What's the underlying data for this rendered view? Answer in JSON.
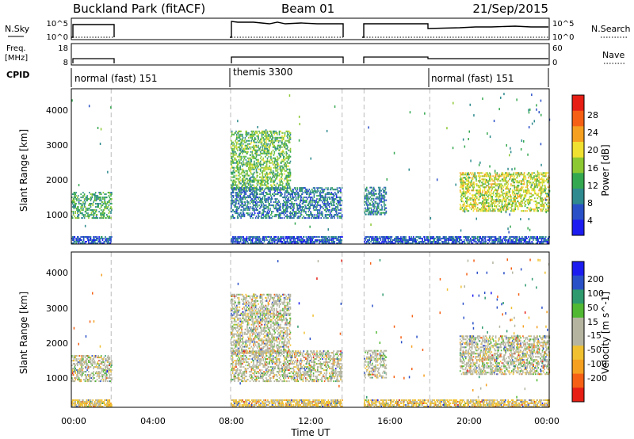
{
  "header": {
    "site": "Buckland Park (fitACF)",
    "beam": "Beam 01",
    "date": "21/Sep/2015"
  },
  "top_panels": {
    "nsky_label": "N.Sky",
    "nsky_ticks": [
      "10^5",
      "10^0"
    ],
    "nsearch_label": "N.Search",
    "nsearch_ticks": [
      "10^5",
      "10^0"
    ],
    "freq_label_1": "Freq.",
    "freq_label_2": "[MHz]",
    "freq_ticks": [
      "18",
      "8"
    ],
    "nave_label": "Nave",
    "nave_ticks": [
      "60",
      "0"
    ],
    "cpid_label": "CPID",
    "cpid_modes": [
      {
        "name": "normal (fast) 151",
        "start": "00:00",
        "end": "08:00"
      },
      {
        "name": "themis 3300",
        "start": "08:00",
        "end": "18:00"
      },
      {
        "name": "normal (fast) 151",
        "start": "18:00",
        "end": "24:00"
      }
    ]
  },
  "x_axis": {
    "label": "Time UT",
    "ticks": [
      "00:00",
      "04:00",
      "08:00",
      "12:00",
      "16:00",
      "20:00",
      "00:00"
    ]
  },
  "colors": {
    "power_scale": [
      "#1c1cf0",
      "#2a50c8",
      "#2e8a8e",
      "#34a850",
      "#8cc832",
      "#f0e030",
      "#f5a020",
      "#f56014",
      "#e61e14"
    ],
    "velocity_scale": [
      "#e61e14",
      "#f56014",
      "#f5a020",
      "#f0c030",
      "#b4b4a0",
      "#b4b4a0",
      "#50b832",
      "#2e9a6e",
      "#2a50c8",
      "#1c1cf0"
    ]
  },
  "chart_data": [
    {
      "type": "heatmap",
      "title": "Power",
      "xlabel": "Time UT",
      "ylabel": "Slant Range [km]",
      "xlim": [
        0,
        24
      ],
      "ylim": [
        180,
        4600
      ],
      "yticks": [
        "1000",
        "2000",
        "3000",
        "4000"
      ],
      "colorbar_label": "Power [dB]",
      "colorbar_ticks": [
        "28",
        "24",
        "20",
        "16",
        "12",
        "8",
        "4"
      ],
      "colorbar_range": [
        0,
        32
      ],
      "data_gaps": [
        [
          2.0,
          8.0
        ],
        [
          13.6,
          14.7
        ]
      ],
      "echo_regions": [
        {
          "t_start": 0.0,
          "t_end": 2.0,
          "range_min": 900,
          "range_max": 1650,
          "power_db": 12
        },
        {
          "t_start": 8.0,
          "t_end": 11.0,
          "range_min": 1700,
          "range_max": 3400,
          "power_db": 14
        },
        {
          "t_start": 8.0,
          "t_end": 13.6,
          "range_min": 900,
          "range_max": 1800,
          "power_db": 8
        },
        {
          "t_start": 14.7,
          "t_end": 15.8,
          "range_min": 1000,
          "range_max": 1800,
          "power_db": 9
        },
        {
          "t_start": 19.5,
          "t_end": 24.0,
          "range_min": 1100,
          "range_max": 2200,
          "power_db": 18
        },
        {
          "t_start": 0.0,
          "t_end": 24.0,
          "range_min": 180,
          "range_max": 400,
          "power_db": 6
        }
      ]
    },
    {
      "type": "heatmap",
      "title": "Velocity",
      "xlabel": "Time UT",
      "ylabel": "Slant Range [km]",
      "xlim": [
        0,
        24
      ],
      "ylim": [
        180,
        4600
      ],
      "yticks": [
        "1000",
        "2000",
        "3000",
        "4000"
      ],
      "colorbar_label": "Velocity [m s^-1]",
      "colorbar_ticks": [
        "200",
        "100",
        "50",
        "15",
        "-15",
        "-50",
        "-100",
        "-200"
      ],
      "data_gaps": [
        [
          2.0,
          8.0
        ],
        [
          13.6,
          14.7
        ]
      ],
      "echo_regions": [
        {
          "t_start": 0.0,
          "t_end": 2.0,
          "range_min": 900,
          "range_max": 1650,
          "velocity": 0
        },
        {
          "t_start": 8.0,
          "t_end": 11.0,
          "range_min": 1700,
          "range_max": 3400,
          "velocity": 0
        },
        {
          "t_start": 8.0,
          "t_end": 13.6,
          "range_min": 900,
          "range_max": 1800,
          "velocity": 0
        },
        {
          "t_start": 14.7,
          "t_end": 15.8,
          "range_min": 1000,
          "range_max": 1800,
          "velocity": 0
        },
        {
          "t_start": 19.5,
          "t_end": 24.0,
          "range_min": 1100,
          "range_max": 2200,
          "velocity": 0
        },
        {
          "t_start": 0.0,
          "t_end": 24.0,
          "range_min": 180,
          "range_max": 400,
          "velocity": -20
        }
      ]
    }
  ]
}
